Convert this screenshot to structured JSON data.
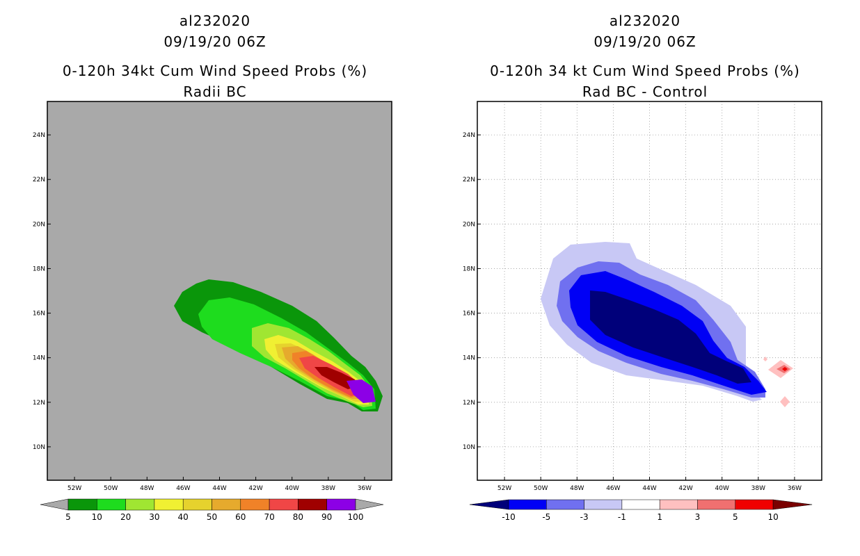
{
  "left_panel": {
    "storm_id": "al232020",
    "datetime": "09/19/20 06Z",
    "title": "0-120h 34kt Cum Wind Speed Probs (%)",
    "subtitle": "Radii BC",
    "background_color": "#a9a9a9"
  },
  "right_panel": {
    "storm_id": "al232020",
    "datetime": "09/19/20 06Z",
    "title": "0-120h 34 kt Cum Wind Speed Probs (%)",
    "subtitle": "Rad BC - Control",
    "background_color": "#ffffff"
  },
  "left_colorbar": {
    "labels": [
      "5",
      "10",
      "20",
      "30",
      "40",
      "50",
      "60",
      "70",
      "80",
      "90",
      "100"
    ],
    "colors": [
      "#0a960a",
      "#1edc1e",
      "#a0e632",
      "#f0f032",
      "#e6d22d",
      "#e6aa2d",
      "#f08228",
      "#f04646",
      "#a00000",
      "#8c00e6"
    ],
    "end_arrow_color": "#a9a9a9"
  },
  "right_colorbar": {
    "labels": [
      "-10",
      "-5",
      "-3",
      "-1",
      "1",
      "3",
      "5",
      "10"
    ],
    "colors": [
      "#00007a",
      "#0000f5",
      "#7070f0",
      "#c8c8f5",
      "#ffffff",
      "#ffc0c0",
      "#f07070",
      "#f00000",
      "#7a0000"
    ]
  },
  "chart_data": [
    {
      "type": "filled-contour-map",
      "panel": "left",
      "title": "0-120h 34kt Cum Wind Speed Probs (%)",
      "subtitle": "Radii BC",
      "x_ticks": [
        "52W",
        "50W",
        "48W",
        "46W",
        "44W",
        "42W",
        "40W",
        "38W",
        "36W"
      ],
      "y_ticks": [
        "10N",
        "12N",
        "14N",
        "16N",
        "18N",
        "20N",
        "22N",
        "24N"
      ],
      "xlim_deg_west": [
        53.5,
        34.5
      ],
      "ylim_deg_north": [
        8.5,
        25.5
      ],
      "contour_levels": [
        5,
        10,
        20,
        30,
        40,
        50,
        60,
        70,
        80,
        90,
        100
      ],
      "max_probability_location": "near 13N 37W",
      "track_extent": "16.5N 46.5W to 12N 36W"
    },
    {
      "type": "filled-contour-map",
      "panel": "right",
      "title": "0-120h 34 kt Cum Wind Speed Probs (%)",
      "subtitle": "Rad BC - Control",
      "x_ticks": [
        "52W",
        "50W",
        "48W",
        "46W",
        "44W",
        "42W",
        "40W",
        "38W",
        "36W"
      ],
      "y_ticks": [
        "10N",
        "12N",
        "14N",
        "16N",
        "18N",
        "20N",
        "22N",
        "24N"
      ],
      "xlim_deg_west": [
        53.5,
        34.5
      ],
      "ylim_deg_north": [
        8.5,
        25.5
      ],
      "contour_levels": [
        -10,
        -5,
        -3,
        -1,
        1,
        3,
        5,
        10
      ],
      "min_difference_region": "16-14N, 47-38W",
      "positive_difference_location": "near 13.5N 36.5W"
    }
  ]
}
